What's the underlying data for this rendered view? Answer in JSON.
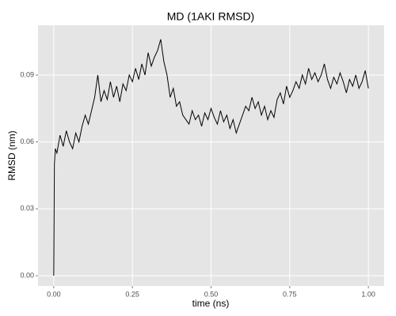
{
  "chart_data": {
    "type": "line",
    "title": "MD (1AKI RMSD)",
    "x_label": "time (ns)",
    "y_label": "RMSD (nm)",
    "x": [
      0,
      0.002,
      0.005,
      0.01,
      0.02,
      0.03,
      0.04,
      0.05,
      0.06,
      0.07,
      0.08,
      0.09,
      0.1,
      0.11,
      0.12,
      0.13,
      0.14,
      0.15,
      0.16,
      0.17,
      0.18,
      0.19,
      0.2,
      0.21,
      0.22,
      0.23,
      0.24,
      0.25,
      0.26,
      0.27,
      0.28,
      0.29,
      0.3,
      0.31,
      0.32,
      0.33,
      0.34,
      0.35,
      0.36,
      0.37,
      0.38,
      0.39,
      0.4,
      0.41,
      0.42,
      0.43,
      0.44,
      0.45,
      0.46,
      0.47,
      0.48,
      0.49,
      0.5,
      0.51,
      0.52,
      0.53,
      0.54,
      0.55,
      0.56,
      0.57,
      0.58,
      0.59,
      0.6,
      0.61,
      0.62,
      0.63,
      0.64,
      0.65,
      0.66,
      0.67,
      0.68,
      0.69,
      0.7,
      0.71,
      0.72,
      0.73,
      0.74,
      0.75,
      0.76,
      0.77,
      0.78,
      0.79,
      0.8,
      0.81,
      0.82,
      0.83,
      0.84,
      0.85,
      0.86,
      0.87,
      0.88,
      0.89,
      0.9,
      0.91,
      0.92,
      0.93,
      0.94,
      0.95,
      0.96,
      0.97,
      0.98,
      0.99,
      1.0
    ],
    "values": [
      0.0,
      0.05,
      0.057,
      0.055,
      0.063,
      0.058,
      0.065,
      0.06,
      0.057,
      0.064,
      0.06,
      0.067,
      0.072,
      0.068,
      0.074,
      0.08,
      0.09,
      0.078,
      0.083,
      0.079,
      0.087,
      0.08,
      0.085,
      0.078,
      0.086,
      0.083,
      0.09,
      0.087,
      0.093,
      0.088,
      0.095,
      0.09,
      0.1,
      0.094,
      0.098,
      0.101,
      0.106,
      0.096,
      0.09,
      0.08,
      0.084,
      0.076,
      0.078,
      0.072,
      0.07,
      0.068,
      0.074,
      0.07,
      0.072,
      0.067,
      0.073,
      0.07,
      0.075,
      0.071,
      0.068,
      0.074,
      0.069,
      0.072,
      0.066,
      0.07,
      0.064,
      0.068,
      0.072,
      0.076,
      0.074,
      0.08,
      0.075,
      0.078,
      0.072,
      0.076,
      0.07,
      0.074,
      0.071,
      0.079,
      0.082,
      0.077,
      0.085,
      0.08,
      0.083,
      0.087,
      0.084,
      0.09,
      0.086,
      0.093,
      0.088,
      0.091,
      0.087,
      0.09,
      0.095,
      0.088,
      0.084,
      0.089,
      0.086,
      0.091,
      0.087,
      0.082,
      0.088,
      0.085,
      0.09,
      0.084,
      0.087,
      0.092,
      0.084
    ],
    "color": "#000000",
    "xlim": [
      -0.05,
      1.05
    ],
    "xticks": [
      {
        "value": 0,
        "label": "0.00"
      },
      0.25,
      {
        "value": 0.5,
        "label": "0.50"
      },
      0.75,
      {
        "value": 1,
        "label": "1.00"
      }
    ],
    "ylim": [
      -0.0046,
      0.1123
    ],
    "yticks": [
      {
        "value": 0,
        "label": "0.00"
      },
      0.03,
      0.06,
      0.09
    ],
    "grid": true
  }
}
